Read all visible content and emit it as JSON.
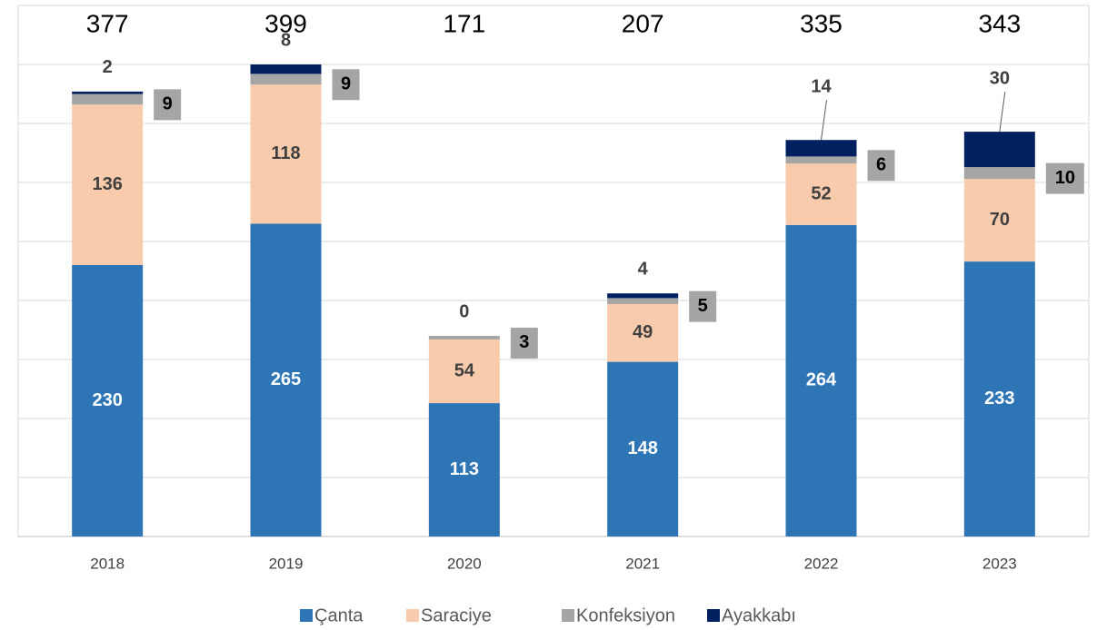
{
  "chart_data": {
    "type": "stacked_bar",
    "categories": [
      "2018",
      "2019",
      "2020",
      "2021",
      "2022",
      "2023"
    ],
    "totals": [
      377,
      399,
      171,
      207,
      335,
      343
    ],
    "series": [
      {
        "name": "Çanta",
        "color": "#2e75b6",
        "values": [
          230,
          265,
          113,
          148,
          264,
          233
        ]
      },
      {
        "name": "Saraciye",
        "color": "#f8cbad",
        "values": [
          136,
          118,
          54,
          49,
          52,
          70
        ]
      },
      {
        "name": "Konfeksiyon",
        "color": "#a5a5a5",
        "values": [
          9,
          9,
          3,
          5,
          6,
          10
        ]
      },
      {
        "name": "Ayakkabı",
        "color": "#002060",
        "values": [
          2,
          8,
          0,
          4,
          14,
          30
        ]
      }
    ],
    "ylim": [
      0,
      450
    ],
    "yticks": [
      0,
      50,
      100,
      150,
      200,
      250,
      300,
      350,
      400,
      450
    ],
    "grid": true,
    "legend": "bottom"
  }
}
